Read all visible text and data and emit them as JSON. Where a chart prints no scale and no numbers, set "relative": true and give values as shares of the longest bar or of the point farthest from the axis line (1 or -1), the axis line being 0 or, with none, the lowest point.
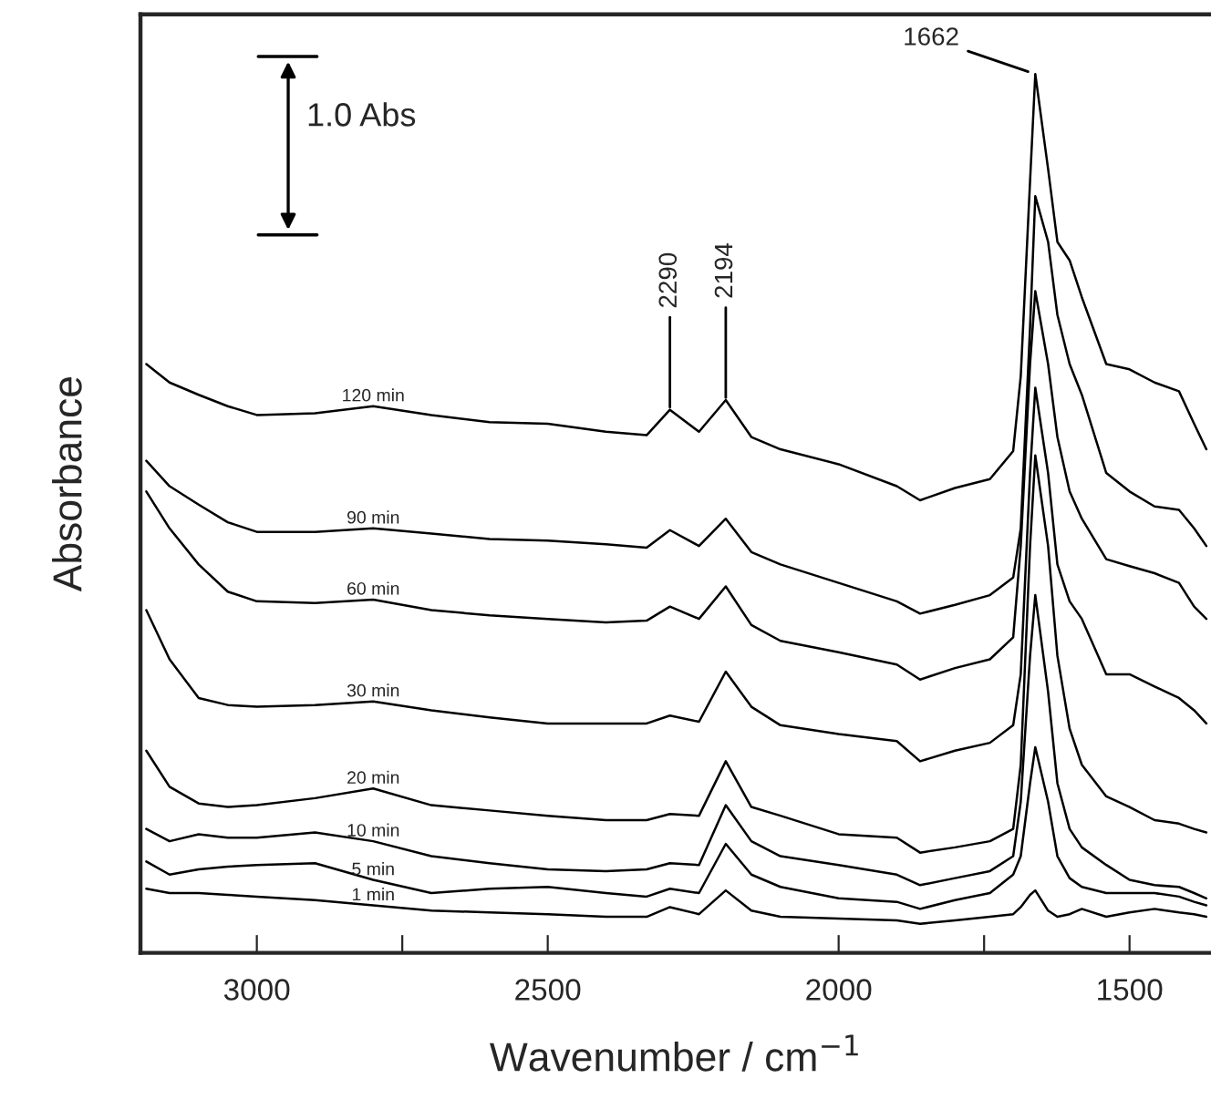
{
  "chart_data": {
    "type": "line",
    "relative": true,
    "xlabel": "Wavenumber / cm$^{−1}$",
    "ylabel": "Absorbance",
    "x": [
      3190,
      3150,
      3100,
      3050,
      3000,
      2900,
      2800,
      2700,
      2600,
      2500,
      2400,
      2330,
      2290,
      2240,
      2194,
      2150,
      2100,
      2000,
      1900,
      1860,
      1800,
      1740,
      1700,
      1687,
      1671,
      1662,
      1640,
      1624,
      1603,
      1582,
      1540,
      1500,
      1457,
      1415,
      1389,
      1368
    ],
    "xlim": [
      3200,
      1360
    ],
    "xticks": [
      3000,
      {
        "value": 2750,
        "label": null
      },
      2500,
      2000,
      {
        "value": 1750,
        "label": null
      },
      1500
    ],
    "tick_labels": "x",
    "grid": false,
    "legend": false,
    "marker": "none",
    "line_style": "solid",
    "series": [
      {
        "name": "120 min",
        "color": "#000000",
        "values": [
          0.67,
          0.649,
          0.635,
          0.622,
          0.612,
          0.614,
          0.622,
          0.612,
          0.604,
          0.602,
          0.593,
          0.589,
          0.618,
          0.593,
          0.629,
          0.587,
          0.573,
          0.556,
          0.531,
          0.515,
          0.529,
          0.539,
          0.571,
          0.656,
          0.878,
          1.0,
          0.892,
          0.809,
          0.788,
          0.746,
          0.67,
          0.664,
          0.649,
          0.639,
          0.602,
          0.573
        ]
      },
      {
        "name": "90 min",
        "color": "#000000",
        "values": [
          0.56,
          0.531,
          0.51,
          0.49,
          0.479,
          0.479,
          0.483,
          0.477,
          0.471,
          0.469,
          0.465,
          0.461,
          0.481,
          0.463,
          0.494,
          0.456,
          0.442,
          0.421,
          0.4,
          0.386,
          0.396,
          0.407,
          0.427,
          0.483,
          0.712,
          0.861,
          0.809,
          0.726,
          0.67,
          0.635,
          0.546,
          0.525,
          0.508,
          0.504,
          0.483,
          0.463
        ]
      },
      {
        "name": "60 min",
        "color": "#000000",
        "values": [
          0.525,
          0.483,
          0.442,
          0.411,
          0.4,
          0.398,
          0.402,
          0.39,
          0.384,
          0.38,
          0.376,
          0.378,
          0.394,
          0.38,
          0.417,
          0.373,
          0.355,
          0.342,
          0.328,
          0.311,
          0.324,
          0.334,
          0.359,
          0.463,
          0.67,
          0.753,
          0.67,
          0.587,
          0.525,
          0.494,
          0.448,
          0.44,
          0.432,
          0.421,
          0.394,
          0.38
        ]
      },
      {
        "name": "30 min",
        "color": "#000000",
        "values": [
          0.39,
          0.334,
          0.29,
          0.282,
          0.28,
          0.282,
          0.286,
          0.276,
          0.268,
          0.261,
          0.261,
          0.261,
          0.27,
          0.263,
          0.32,
          0.28,
          0.259,
          0.249,
          0.241,
          0.218,
          0.23,
          0.239,
          0.259,
          0.317,
          0.546,
          0.643,
          0.546,
          0.442,
          0.4,
          0.38,
          0.317,
          0.317,
          0.303,
          0.29,
          0.276,
          0.261
        ]
      },
      {
        "name": "20 min",
        "color": "#000000",
        "values": [
          0.23,
          0.189,
          0.17,
          0.166,
          0.168,
          0.176,
          0.187,
          0.168,
          0.162,
          0.156,
          0.151,
          0.151,
          0.158,
          0.156,
          0.218,
          0.166,
          0.156,
          0.135,
          0.131,
          0.114,
          0.12,
          0.127,
          0.141,
          0.214,
          0.463,
          0.566,
          0.463,
          0.338,
          0.255,
          0.214,
          0.178,
          0.166,
          0.151,
          0.147,
          0.141,
          0.137
        ]
      },
      {
        "name": "10 min",
        "color": "#000000",
        "values": [
          0.141,
          0.127,
          0.135,
          0.131,
          0.131,
          0.137,
          0.127,
          0.11,
          0.102,
          0.095,
          0.093,
          0.095,
          0.102,
          0.1,
          0.168,
          0.127,
          0.11,
          0.1,
          0.089,
          0.077,
          0.085,
          0.093,
          0.11,
          0.172,
          0.338,
          0.407,
          0.297,
          0.193,
          0.141,
          0.12,
          0.1,
          0.083,
          0.077,
          0.075,
          0.068,
          0.062
        ]
      },
      {
        "name": "5 min",
        "color": "#000000",
        "values": [
          0.104,
          0.089,
          0.095,
          0.098,
          0.1,
          0.102,
          0.083,
          0.068,
          0.073,
          0.075,
          0.068,
          0.064,
          0.073,
          0.068,
          0.124,
          0.089,
          0.075,
          0.062,
          0.058,
          0.05,
          0.06,
          0.068,
          0.089,
          0.11,
          0.193,
          0.234,
          0.172,
          0.11,
          0.085,
          0.075,
          0.068,
          0.068,
          0.068,
          0.064,
          0.058,
          0.054
        ]
      },
      {
        "name": "1 min",
        "color": "#000000",
        "values": [
          0.073,
          0.068,
          0.068,
          0.066,
          0.064,
          0.06,
          0.054,
          0.048,
          0.046,
          0.044,
          0.041,
          0.041,
          0.052,
          0.044,
          0.071,
          0.048,
          0.041,
          0.039,
          0.037,
          0.033,
          0.037,
          0.041,
          0.044,
          0.052,
          0.066,
          0.071,
          0.048,
          0.041,
          0.044,
          0.05,
          0.041,
          0.046,
          0.05,
          0.046,
          0.044,
          0.041
        ]
      }
    ],
    "annotations": [
      "1.0 Abs",
      {
        "text": "2290",
        "x": 2290,
        "y": 0.618
      },
      {
        "text": "2194",
        "x": 2194,
        "y": 0.629
      },
      {
        "text": "1662",
        "x": 1662,
        "y": 1.0
      }
    ]
  }
}
